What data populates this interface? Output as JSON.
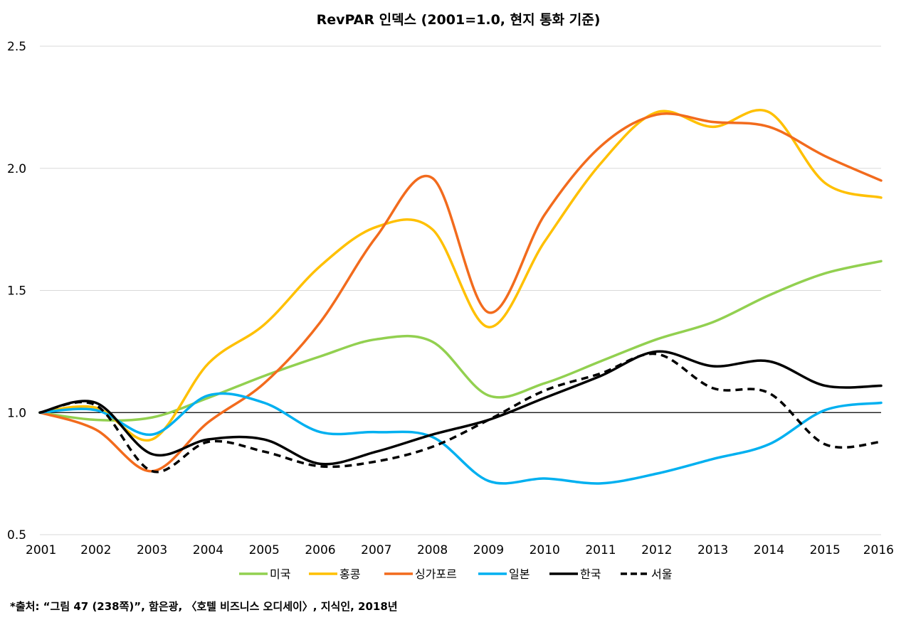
{
  "chart_data": {
    "type": "line",
    "title": "RevPAR 인덱스 (2001=1.0, 현지 통화 기준)",
    "x": [
      2001,
      2002,
      2003,
      2004,
      2005,
      2006,
      2007,
      2008,
      2009,
      2010,
      2011,
      2012,
      2013,
      2014,
      2015,
      2016
    ],
    "x_tick_labels": [
      "2001",
      "2002",
      "2003",
      "2004",
      "2005",
      "2006",
      "2007",
      "2008",
      "2009",
      "2010",
      "2011",
      "2012",
      "2013",
      "2014",
      "2015",
      "2016"
    ],
    "ylim": [
      0.5,
      2.5
    ],
    "y_ticks": [
      0.5,
      1.0,
      1.5,
      2.0,
      2.5
    ],
    "y_tick_labels": [
      "0.5",
      "1.0",
      "1.5",
      "2.0",
      "2.5"
    ],
    "reference_line": 1.0,
    "grid": "horizontal",
    "legend_position": "bottom",
    "series": [
      {
        "name": "미국",
        "color": "#92d050",
        "dash": false,
        "values": [
          1.0,
          0.97,
          0.98,
          1.06,
          1.15,
          1.23,
          1.3,
          1.29,
          1.07,
          1.12,
          1.21,
          1.3,
          1.37,
          1.48,
          1.57,
          1.62
        ]
      },
      {
        "name": "홍콩",
        "color": "#ffc000",
        "dash": false,
        "values": [
          1.0,
          1.02,
          0.89,
          1.2,
          1.36,
          1.6,
          1.76,
          1.75,
          1.35,
          1.7,
          2.02,
          2.23,
          2.17,
          2.23,
          1.94,
          1.88
        ]
      },
      {
        "name": "싱가포르",
        "color": "#f26b1d",
        "dash": false,
        "values": [
          1.0,
          0.93,
          0.76,
          0.96,
          1.12,
          1.37,
          1.72,
          1.96,
          1.41,
          1.81,
          2.09,
          2.22,
          2.19,
          2.17,
          2.05,
          1.95
        ]
      },
      {
        "name": "일본",
        "color": "#00b0f0",
        "dash": false,
        "values": [
          1.0,
          1.01,
          0.91,
          1.07,
          1.04,
          0.92,
          0.92,
          0.9,
          0.72,
          0.73,
          0.71,
          0.75,
          0.81,
          0.87,
          1.01,
          1.04
        ]
      },
      {
        "name": "한국",
        "color": "#000000",
        "dash": false,
        "values": [
          1.0,
          1.04,
          0.83,
          0.89,
          0.89,
          0.79,
          0.84,
          0.91,
          0.97,
          1.06,
          1.15,
          1.25,
          1.19,
          1.21,
          1.11,
          1.11
        ]
      },
      {
        "name": "서울",
        "color": "#000000",
        "dash": true,
        "values": [
          1.0,
          1.03,
          0.76,
          0.88,
          0.84,
          0.78,
          0.8,
          0.86,
          0.97,
          1.09,
          1.16,
          1.24,
          1.1,
          1.08,
          0.87,
          0.88
        ]
      }
    ]
  },
  "source_note": "*출처: “그림 47 (238쪽)”, 함은광, 〈호텔 비즈니스 오디세이〉, 지식인, 2018년"
}
